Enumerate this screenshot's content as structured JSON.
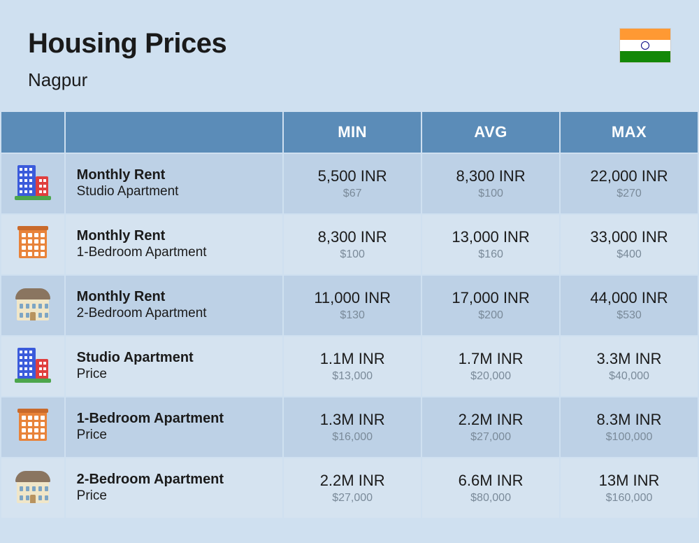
{
  "header": {
    "title": "Housing Prices",
    "city": "Nagpur"
  },
  "flag": {
    "top_color": "#ff9933",
    "middle_color": "#ffffff",
    "bottom_color": "#138808",
    "wheel_color": "#000080"
  },
  "columns": {
    "min": "MIN",
    "avg": "AVG",
    "max": "MAX"
  },
  "colors": {
    "page_bg": "#cfe0f0",
    "header_bg": "#5b8cb8",
    "row_alt1": "#bdd1e6",
    "row_alt2": "#d5e3f0",
    "text_main": "#1a1a1a",
    "text_sub": "#7a8a99",
    "header_text": "#ffffff"
  },
  "rows": [
    {
      "icon": "building-blue-red",
      "title": "Monthly Rent",
      "subtitle": "Studio Apartment",
      "min": {
        "main": "5,500 INR",
        "sub": "$67"
      },
      "avg": {
        "main": "8,300 INR",
        "sub": "$100"
      },
      "max": {
        "main": "22,000 INR",
        "sub": "$270"
      }
    },
    {
      "icon": "building-orange",
      "title": "Monthly Rent",
      "subtitle": "1-Bedroom Apartment",
      "min": {
        "main": "8,300 INR",
        "sub": "$100"
      },
      "avg": {
        "main": "13,000 INR",
        "sub": "$160"
      },
      "max": {
        "main": "33,000 INR",
        "sub": "$400"
      }
    },
    {
      "icon": "building-cream",
      "title": "Monthly Rent",
      "subtitle": "2-Bedroom Apartment",
      "min": {
        "main": "11,000 INR",
        "sub": "$130"
      },
      "avg": {
        "main": "17,000 INR",
        "sub": "$200"
      },
      "max": {
        "main": "44,000 INR",
        "sub": "$530"
      }
    },
    {
      "icon": "building-blue-red",
      "title": "Studio Apartment",
      "subtitle": "Price",
      "min": {
        "main": "1.1M INR",
        "sub": "$13,000"
      },
      "avg": {
        "main": "1.7M INR",
        "sub": "$20,000"
      },
      "max": {
        "main": "3.3M INR",
        "sub": "$40,000"
      }
    },
    {
      "icon": "building-orange",
      "title": "1-Bedroom Apartment",
      "subtitle": "Price",
      "min": {
        "main": "1.3M INR",
        "sub": "$16,000"
      },
      "avg": {
        "main": "2.2M INR",
        "sub": "$27,000"
      },
      "max": {
        "main": "8.3M INR",
        "sub": "$100,000"
      }
    },
    {
      "icon": "building-cream",
      "title": "2-Bedroom Apartment",
      "subtitle": "Price",
      "min": {
        "main": "2.2M INR",
        "sub": "$27,000"
      },
      "avg": {
        "main": "6.6M INR",
        "sub": "$80,000"
      },
      "max": {
        "main": "13M INR",
        "sub": "$160,000"
      }
    }
  ]
}
